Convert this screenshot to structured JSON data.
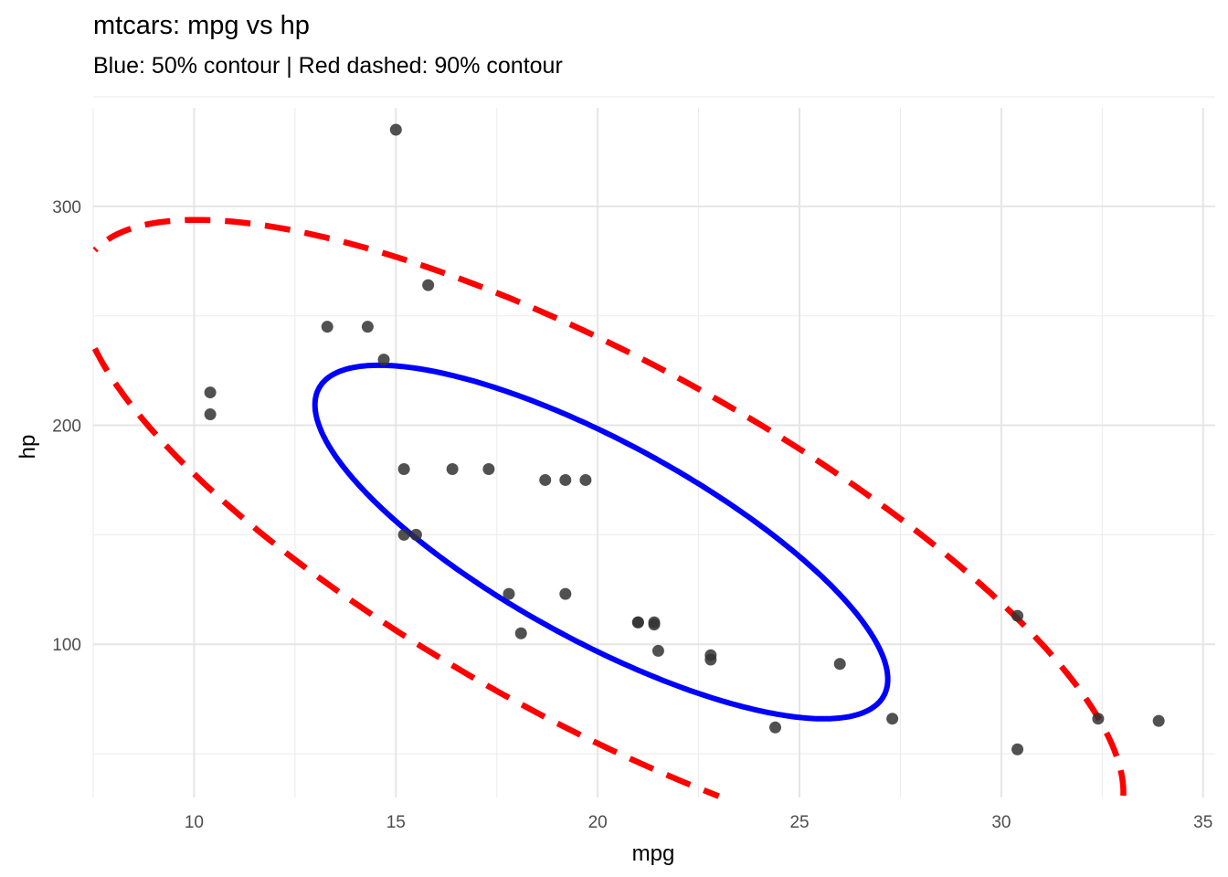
{
  "chart_data": {
    "type": "scatter",
    "title": "mtcars: mpg vs hp",
    "subtitle": "Blue: 50% contour | Red dashed: 90% contour",
    "xlabel": "mpg",
    "ylabel": "hp",
    "xlim": [
      7.5,
      35.3
    ],
    "ylim": [
      30,
      345
    ],
    "x_ticks": [
      10,
      15,
      20,
      25,
      30,
      35
    ],
    "y_ticks": [
      100,
      200,
      300
    ],
    "grid": true,
    "point_color": "#333333",
    "points": [
      {
        "x": 21.0,
        "y": 110
      },
      {
        "x": 21.0,
        "y": 110
      },
      {
        "x": 22.8,
        "y": 93
      },
      {
        "x": 21.4,
        "y": 110
      },
      {
        "x": 18.7,
        "y": 175
      },
      {
        "x": 18.1,
        "y": 105
      },
      {
        "x": 14.3,
        "y": 245
      },
      {
        "x": 24.4,
        "y": 62
      },
      {
        "x": 22.8,
        "y": 95
      },
      {
        "x": 19.2,
        "y": 123
      },
      {
        "x": 17.8,
        "y": 123
      },
      {
        "x": 16.4,
        "y": 180
      },
      {
        "x": 17.3,
        "y": 180
      },
      {
        "x": 15.2,
        "y": 180
      },
      {
        "x": 10.4,
        "y": 205
      },
      {
        "x": 10.4,
        "y": 215
      },
      {
        "x": 14.7,
        "y": 230
      },
      {
        "x": 32.4,
        "y": 66
      },
      {
        "x": 30.4,
        "y": 52
      },
      {
        "x": 33.9,
        "y": 65
      },
      {
        "x": 21.5,
        "y": 97
      },
      {
        "x": 15.5,
        "y": 150
      },
      {
        "x": 15.2,
        "y": 150
      },
      {
        "x": 13.3,
        "y": 245
      },
      {
        "x": 19.2,
        "y": 175
      },
      {
        "x": 27.3,
        "y": 66
      },
      {
        "x": 26.0,
        "y": 91
      },
      {
        "x": 30.4,
        "y": 113
      },
      {
        "x": 15.8,
        "y": 264
      },
      {
        "x": 19.7,
        "y": 175
      },
      {
        "x": 15.0,
        "y": 335
      },
      {
        "x": 21.4,
        "y": 109
      }
    ],
    "contours": [
      {
        "level": "50%",
        "color": "#0000ff",
        "style": "solid",
        "center": [
          20.09,
          146.69
        ]
      },
      {
        "level": "90%",
        "color": "#ff0000",
        "style": "dashed",
        "center": [
          20.09,
          146.69
        ]
      }
    ]
  }
}
